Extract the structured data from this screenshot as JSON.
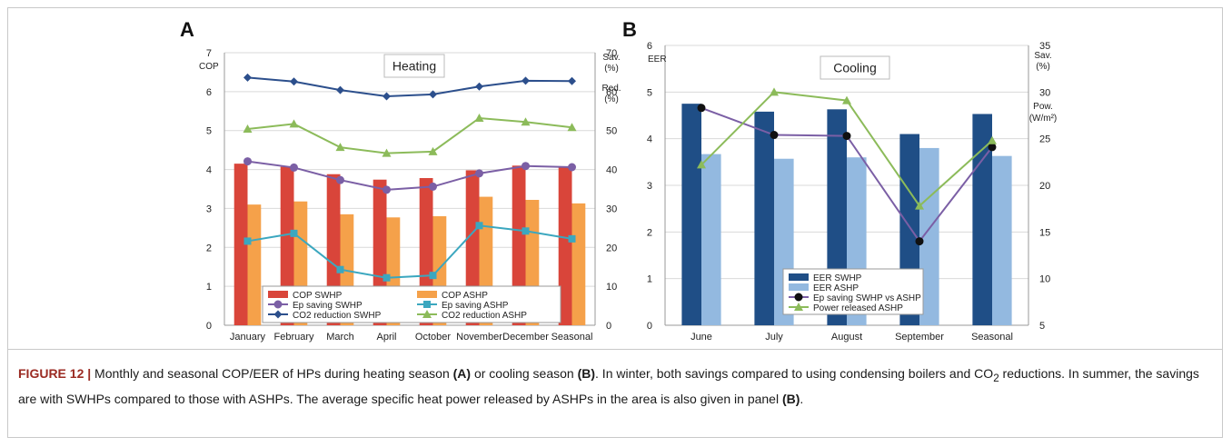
{
  "panels": {
    "a_letter": "A",
    "b_letter": "B"
  },
  "caption": {
    "label": "FIGURE 12 |",
    "t1": " Monthly and seasonal COP/EER of HPs during heating season ",
    "b1": "(A)",
    "t2": " or cooling season ",
    "b2": "(B)",
    "t3": ". In winter, both savings compared to using condensing boilers and CO",
    "sub": "2",
    "t4": " reductions. In summer, the savings are with SWHPs compared to those with ASHPs. The average specific heat power released by ASHPs in the area is also given in panel ",
    "b3": "(B)",
    "t5": "."
  },
  "chart_data": [
    {
      "type": "bar",
      "title": "Heating",
      "categories": [
        "January",
        "February",
        "March",
        "April",
        "October",
        "November",
        "December",
        "Seasonal"
      ],
      "ylabel": "COP",
      "ylim": [
        0,
        7
      ],
      "yticks": [
        "0",
        "1",
        "2",
        "3",
        "4",
        "5",
        "6",
        "7"
      ],
      "y2label_lines": [
        "Sav.",
        "(%)",
        "Red.",
        "(%)"
      ],
      "y2lim": [
        0,
        70
      ],
      "y2ticks": [
        "0",
        "10",
        "20",
        "30",
        "40",
        "50",
        "60",
        "70"
      ],
      "grid": true,
      "legend_position": "bottom-center",
      "series": [
        {
          "name": "COP SWHP",
          "kind": "bar",
          "axis": "left",
          "color": "#d9453a",
          "values": [
            4.15,
            4.07,
            3.88,
            3.74,
            3.78,
            3.98,
            4.1,
            4.07
          ]
        },
        {
          "name": "COP ASHP",
          "kind": "bar",
          "axis": "left",
          "color": "#f5a14a",
          "values": [
            3.1,
            3.18,
            2.85,
            2.77,
            2.8,
            3.3,
            3.22,
            3.13
          ]
        },
        {
          "name": "Ep saving SWHP",
          "kind": "line",
          "axis": "right",
          "color": "#7b5fa5",
          "marker": "circle",
          "values": [
            42.1,
            40.5,
            37.3,
            34.8,
            35.6,
            39.0,
            40.9,
            40.6
          ]
        },
        {
          "name": "Ep saving ASHP",
          "kind": "line",
          "axis": "right",
          "color": "#3ba7bf",
          "marker": "square",
          "values": [
            21.6,
            23.6,
            14.3,
            12.2,
            12.8,
            25.6,
            24.2,
            22.2
          ]
        },
        {
          "name": "CO2 reduction SWHP",
          "kind": "line",
          "axis": "right",
          "color": "#2c4f8c",
          "marker": "diamond",
          "values": [
            63.6,
            62.6,
            60.4,
            58.8,
            59.3,
            61.3,
            62.8,
            62.7
          ]
        },
        {
          "name": "CO2 reduction ASHP",
          "kind": "line",
          "axis": "right",
          "color": "#8cbb5a",
          "marker": "triangle",
          "values": [
            50.4,
            51.7,
            45.7,
            44.2,
            44.6,
            53.2,
            52.2,
            50.8
          ]
        }
      ]
    },
    {
      "type": "bar",
      "title": "Cooling",
      "categories": [
        "June",
        "July",
        "August",
        "September",
        "Seasonal"
      ],
      "ylabel": "EER",
      "ylim": [
        0,
        6
      ],
      "yticks": [
        "0",
        "1",
        "2",
        "3",
        "4",
        "5",
        "6"
      ],
      "y2label_lines": [
        "Sav.",
        "(%)",
        "Pow.",
        "(W/m²)"
      ],
      "y2lim": [
        5,
        35
      ],
      "y2ticks": [
        "5",
        "10",
        "15",
        "20",
        "25",
        "30",
        "35"
      ],
      "grid": true,
      "legend_position": "bottom-center",
      "series": [
        {
          "name": "EER SWHP",
          "kind": "bar",
          "axis": "left",
          "color": "#1f4e86",
          "values": [
            4.75,
            4.58,
            4.63,
            4.1,
            4.53
          ]
        },
        {
          "name": "EER ASHP",
          "kind": "bar",
          "axis": "left",
          "color": "#93b9e0",
          "values": [
            3.67,
            3.57,
            3.6,
            3.8,
            3.63
          ]
        },
        {
          "name": "Ep saving SWHP vs ASHP",
          "kind": "line",
          "axis": "right",
          "color": "#7b5fa5",
          "marker": "circle",
          "marker_color": "#111111",
          "values": [
            28.3,
            25.4,
            25.3,
            14.0,
            24.1
          ]
        },
        {
          "name": "Power released ASHP",
          "kind": "line",
          "axis": "right",
          "color": "#8cbb5a",
          "marker": "triangle",
          "values": [
            22.2,
            30.0,
            29.1,
            17.8,
            24.8
          ]
        }
      ]
    }
  ]
}
